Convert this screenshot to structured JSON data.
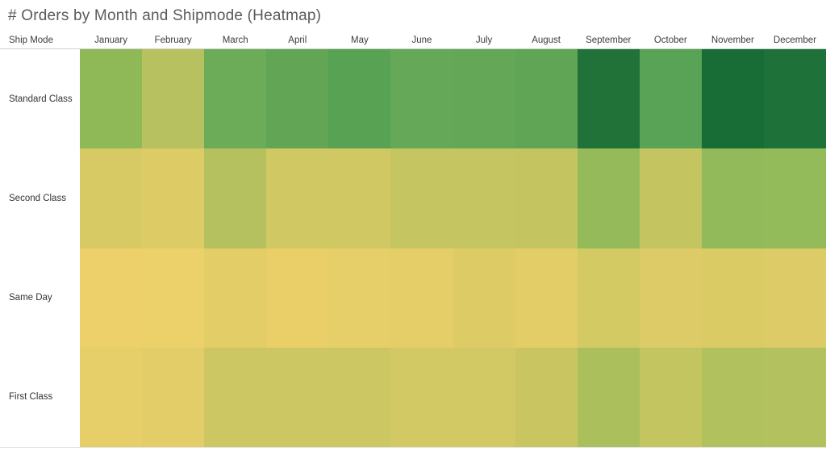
{
  "title": "# Orders by Month and Shipmode (Heatmap)",
  "row_axis_header": "Ship Mode",
  "chart_data": {
    "type": "heatmap",
    "title": "# Orders by Month and Shipmode (Heatmap)",
    "x_categories": [
      "January",
      "February",
      "March",
      "April",
      "May",
      "June",
      "July",
      "August",
      "September",
      "October",
      "November",
      "December"
    ],
    "y_categories": [
      "Standard Class",
      "Second Class",
      "Same Day",
      "First Class"
    ],
    "value_encoding": "color",
    "legend": "none",
    "grid": "off",
    "color_scale": {
      "low_color": "#edd069",
      "high_color": "#186c35",
      "low_meaning": "fewer orders",
      "high_meaning": "more orders"
    },
    "cell_colors": [
      [
        "#8fb857",
        "#b7c15f",
        "#6cab57",
        "#62a655",
        "#58a254",
        "#65a857",
        "#64a756",
        "#60a555",
        "#217239",
        "#58a355",
        "#186c35",
        "#1e7138"
      ],
      [
        "#d7ca64",
        "#ddcc66",
        "#b5c05e",
        "#cfc863",
        "#cfc863",
        "#c5c561",
        "#c5c561",
        "#c4c561",
        "#94ba59",
        "#c4c461",
        "#92ba5a",
        "#94bb5a"
      ],
      [
        "#edd069",
        "#ecd069",
        "#e2cd67",
        "#eacf69",
        "#e6ce68",
        "#e5ce68",
        "#ddcb66",
        "#e3cd67",
        "#d3ca64",
        "#dccb66",
        "#dbcb65",
        "#dccb66"
      ],
      [
        "#e6ce68",
        "#e3cd68",
        "#cdc763",
        "#cdc763",
        "#cdc763",
        "#d2c964",
        "#d2c964",
        "#c9c662",
        "#abc05d",
        "#c3c561",
        "#b1c15e",
        "#b3c25f"
      ]
    ]
  },
  "colors": {
    "title_text": "#5a5a5a",
    "header_text": "#3f3c3a",
    "row_label_text": "#333333",
    "header_border": "#d2d2d2",
    "bottom_border": "#dedede",
    "background": "#ffffff"
  }
}
